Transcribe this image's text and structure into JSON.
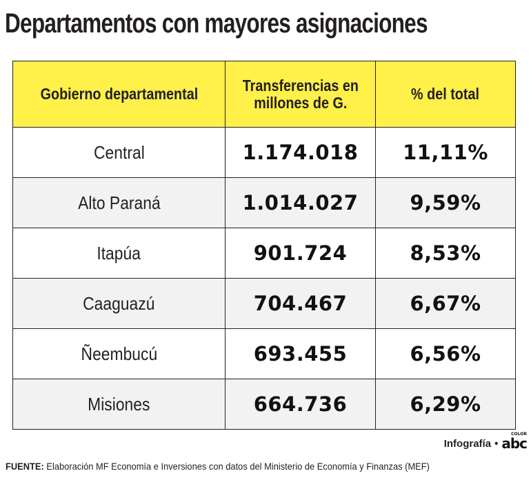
{
  "chart_data": {
    "type": "table",
    "title": "Departamentos con mayores asignaciones",
    "columns": [
      "Gobierno departamental",
      "Transferencias en millones de G.",
      "% del total"
    ],
    "rows": [
      {
        "department": "Central",
        "transfer": "1.174.018",
        "share": "11,11%"
      },
      {
        "department": "Alto Paraná",
        "transfer": "1.014.027",
        "share": "9,59%"
      },
      {
        "department": "Itapúa",
        "transfer": "901.724",
        "share": "8,53%"
      },
      {
        "department": "Caaguazú",
        "transfer": "704.467",
        "share": "6,67%"
      },
      {
        "department": "Ñeembucú",
        "transfer": "693.455",
        "share": "6,56%"
      },
      {
        "department": "Misiones",
        "transfer": "664.736",
        "share": "6,29%"
      }
    ],
    "values_millones_G": [
      1174018,
      1014027,
      901724,
      704467,
      693455,
      664736
    ],
    "values_percent": [
      11.11,
      9.59,
      8.53,
      6.67,
      6.56,
      6.29
    ]
  },
  "header": {
    "col1": "Gobierno departamental",
    "col2_line1": "Transferencias en",
    "col2_line2": "millones de G.",
    "col3": "% del total"
  },
  "credit": {
    "label": "Infografía",
    "separator": "•",
    "logo": "abc",
    "logo_sub": "COLOR"
  },
  "source": {
    "label": "FUENTE:",
    "text": " Elaboración MF Economía e Inversiones con datos del Ministerio de Economía y Finanzas (MEF)"
  },
  "colors": {
    "header_bg": "#fff04a",
    "alt_row_bg": "#f2f2f2",
    "border": "#231f20"
  }
}
